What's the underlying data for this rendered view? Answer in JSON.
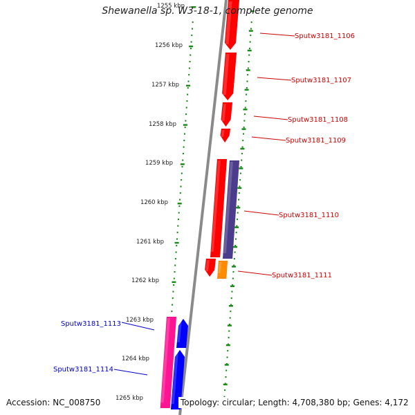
{
  "title": "Shewanella sp. W3-18-1, complete genome",
  "accession_text": "Accession: NC_008750",
  "topology_text": "Topology: circular; Length: 4,708,380 bp; Genes: 4,172",
  "colors": {
    "backbone": "#8a8a8a",
    "tick_dots": "#1a8a1a",
    "forward_gene": "#ff0000",
    "forward_label": "#cc0000",
    "reverse_label": "#0000cc",
    "purple_gene": "#4b3c8c",
    "orange_gene": "#ff8c00",
    "magenta_gene": "#ff1493",
    "blue_gene": "#0000ff"
  },
  "kbp_ticks": [
    "1255 kbp",
    "1256 kbp",
    "1257 kbp",
    "1258 kbp",
    "1259 kbp",
    "1260 kbp",
    "1261 kbp",
    "1262 kbp",
    "1263 kbp",
    "1264 kbp",
    "1265 kbp"
  ],
  "gene_labels": [
    {
      "text": "Sputw3181_1106",
      "strand": "forward"
    },
    {
      "text": "Sputw3181_1107",
      "strand": "forward"
    },
    {
      "text": "Sputw3181_1108",
      "strand": "forward"
    },
    {
      "text": "Sputw3181_1109",
      "strand": "forward"
    },
    {
      "text": "Sputw3181_1110",
      "strand": "forward"
    },
    {
      "text": "Sputw3181_1111",
      "strand": "forward"
    },
    {
      "text": "Sputw3181_1113",
      "strand": "reverse"
    },
    {
      "text": "Sputw3181_1114",
      "strand": "reverse"
    }
  ]
}
